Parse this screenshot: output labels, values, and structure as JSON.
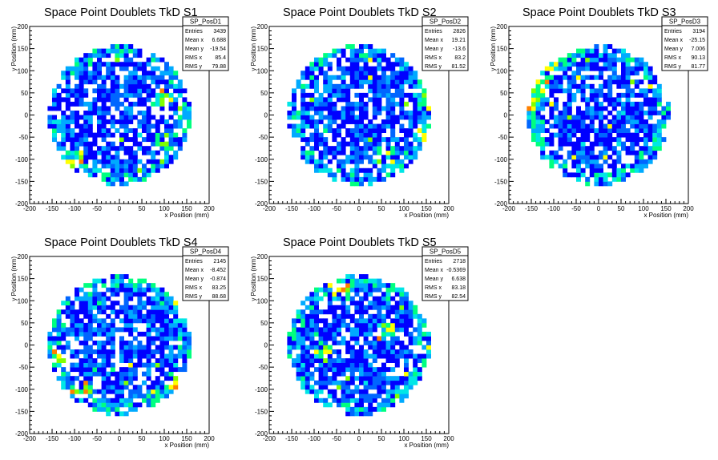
{
  "palette": [
    "#0000ff",
    "#0066ff",
    "#00aaff",
    "#00e6e6",
    "#00ff80",
    "#80ff00",
    "#ffff00",
    "#ff8000",
    "#ff0000"
  ],
  "chart_data": [
    {
      "type": "heatmap",
      "title": "Space Point Doublets TkD S1",
      "xlabel": "x Position (mm)",
      "ylabel": "y Position (mm)",
      "xlim": [
        -200,
        200
      ],
      "ylim": [
        -200,
        200
      ],
      "xticks": [
        "-200",
        "-150",
        "-100",
        "-50",
        "0",
        "50",
        "100",
        "150",
        "200"
      ],
      "yticks": [
        "-200",
        "-150",
        "-100",
        "-50",
        "0",
        "50",
        "100",
        "150",
        "200"
      ],
      "stats": {
        "name": "SP_PosD1",
        "rows": [
          {
            "label": "Entries",
            "value": "3439"
          },
          {
            "label": "Mean x",
            "value": "6.688"
          },
          {
            "label": "Mean y",
            "value": "-19.54"
          },
          {
            "label": "RMS x",
            "value": "85.4"
          },
          {
            "label": "RMS y",
            "value": "79.88"
          }
        ]
      }
    },
    {
      "type": "heatmap",
      "title": "Space Point Doublets TkD S2",
      "xlabel": "x Position (mm)",
      "ylabel": "y Position (mm)",
      "xlim": [
        -200,
        200
      ],
      "ylim": [
        -200,
        200
      ],
      "xticks": [
        "-200",
        "-150",
        "-100",
        "-50",
        "0",
        "50",
        "100",
        "150",
        "200"
      ],
      "yticks": [
        "-200",
        "-150",
        "-100",
        "-50",
        "0",
        "50",
        "100",
        "150",
        "200"
      ],
      "stats": {
        "name": "SP_PosD2",
        "rows": [
          {
            "label": "Entries",
            "value": "2826"
          },
          {
            "label": "Mean x",
            "value": "19.21"
          },
          {
            "label": "Mean y",
            "value": "-13.6"
          },
          {
            "label": "RMS x",
            "value": "83.2"
          },
          {
            "label": "RMS y",
            "value": "81.52"
          }
        ]
      }
    },
    {
      "type": "heatmap",
      "title": "Space Point Doublets TkD S3",
      "xlabel": "x Position (mm)",
      "ylabel": "y Position (mm)",
      "xlim": [
        -200,
        200
      ],
      "ylim": [
        -200,
        200
      ],
      "xticks": [
        "-200",
        "-150",
        "-100",
        "-50",
        "0",
        "50",
        "100",
        "150",
        "200"
      ],
      "yticks": [
        "-200",
        "-150",
        "-100",
        "-50",
        "0",
        "50",
        "100",
        "150",
        "200"
      ],
      "stats": {
        "name": "SP_PosD3",
        "rows": [
          {
            "label": "Entries",
            "value": "3194"
          },
          {
            "label": "Mean x",
            "value": "-25.15"
          },
          {
            "label": "Mean y",
            "value": "7.006"
          },
          {
            "label": "RMS x",
            "value": "90.13"
          },
          {
            "label": "RMS y",
            "value": "81.77"
          }
        ]
      }
    },
    {
      "type": "heatmap",
      "title": "Space Point Doublets TkD S4",
      "xlabel": "x Position (mm)",
      "ylabel": "y Position (mm)",
      "xlim": [
        -200,
        200
      ],
      "ylim": [
        -200,
        200
      ],
      "xticks": [
        "-200",
        "-150",
        "-100",
        "-50",
        "0",
        "50",
        "100",
        "150",
        "200"
      ],
      "yticks": [
        "-200",
        "-150",
        "-100",
        "-50",
        "0",
        "50",
        "100",
        "150",
        "200"
      ],
      "stats": {
        "name": "SP_PosD4",
        "rows": [
          {
            "label": "Entries",
            "value": "2145"
          },
          {
            "label": "Mean x",
            "value": "-8.452"
          },
          {
            "label": "Mean y",
            "value": "-0.874"
          },
          {
            "label": "RMS x",
            "value": "83.25"
          },
          {
            "label": "RMS y",
            "value": "88.68"
          }
        ]
      }
    },
    {
      "type": "heatmap",
      "title": "Space Point Doublets TkD S5",
      "xlabel": "x Position (mm)",
      "ylabel": "y Position (mm)",
      "xlim": [
        -200,
        200
      ],
      "ylim": [
        -200,
        200
      ],
      "xticks": [
        "-200",
        "-150",
        "-100",
        "-50",
        "0",
        "50",
        "100",
        "150",
        "200"
      ],
      "yticks": [
        "-200",
        "-150",
        "-100",
        "-50",
        "0",
        "50",
        "100",
        "150",
        "200"
      ],
      "stats": {
        "name": "SP_PosD5",
        "rows": [
          {
            "label": "Entries",
            "value": "2718"
          },
          {
            "label": "Mean x",
            "value": "-0.5369"
          },
          {
            "label": "Mean y",
            "value": "6.638"
          },
          {
            "label": "RMS x",
            "value": "83.18"
          },
          {
            "label": "RMS y",
            "value": "82.54"
          }
        ]
      }
    }
  ]
}
